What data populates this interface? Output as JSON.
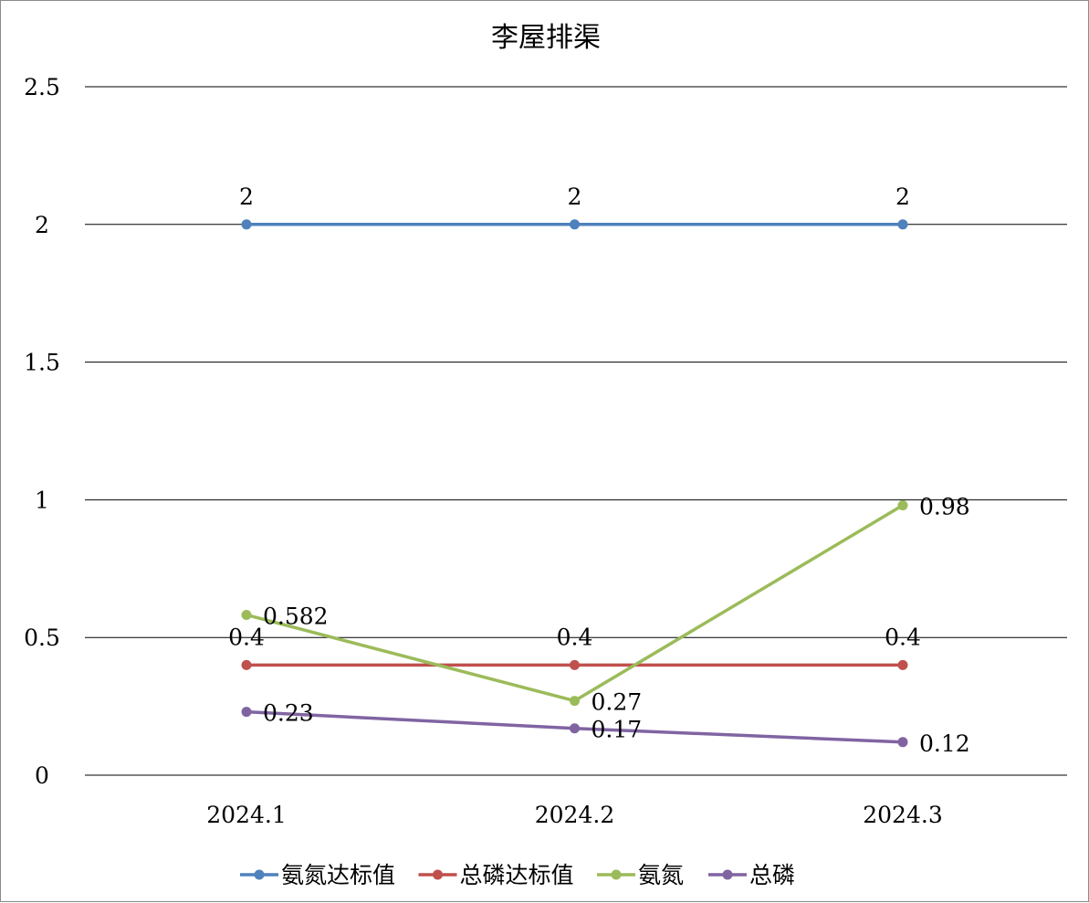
{
  "chart_data": {
    "type": "line",
    "title": "李屋排渠",
    "categories": [
      "2024.1",
      "2024.2",
      "2024.3"
    ],
    "y_tick_labels": [
      "0",
      "0.5",
      "1",
      "1.5",
      "2",
      "2.5"
    ],
    "ylim": [
      0,
      2.5
    ],
    "grid": true,
    "legend_position": "bottom",
    "series": [
      {
        "name": "氨氮达标值",
        "color": "#4f81bd",
        "values": [
          2,
          2,
          2
        ],
        "labels": [
          "2",
          "2",
          "2"
        ],
        "label_pos": "above"
      },
      {
        "name": "总磷达标值",
        "color": "#c0504d",
        "values": [
          0.4,
          0.4,
          0.4
        ],
        "labels": [
          "0.4",
          "0.4",
          "0.4"
        ],
        "label_pos": "above"
      },
      {
        "name": "氨氮",
        "color": "#9bbb59",
        "values": [
          0.582,
          0.27,
          0.98
        ],
        "labels": [
          "0.582",
          "0.27",
          "0.98"
        ],
        "label_pos": "right"
      },
      {
        "name": "总磷",
        "color": "#8064a2",
        "values": [
          0.23,
          0.17,
          0.12
        ],
        "labels": [
          "0.23",
          "0.17",
          "0.12"
        ],
        "label_pos": "right"
      }
    ]
  }
}
